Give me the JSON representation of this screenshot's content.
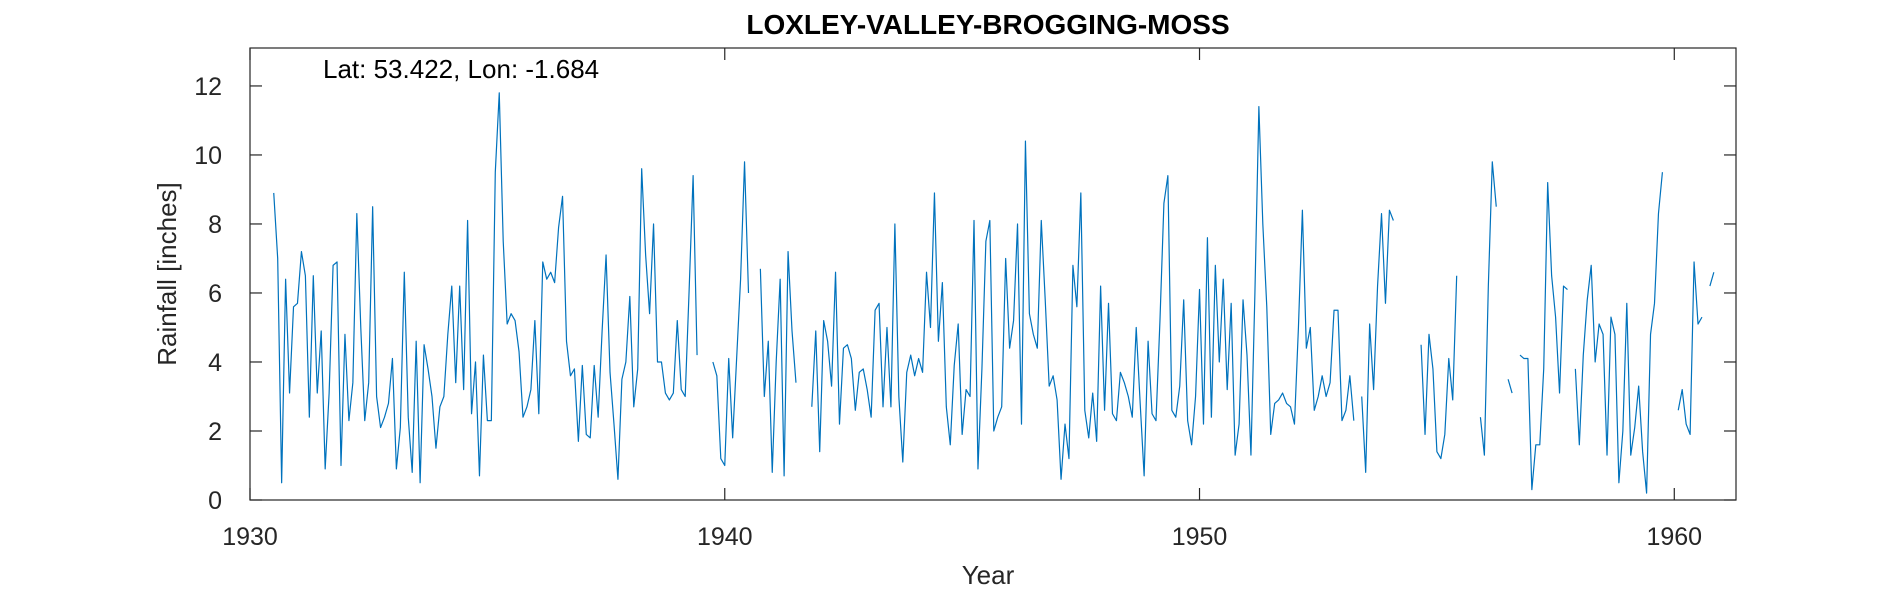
{
  "chart_data": {
    "type": "line",
    "title": "LOXLEY-VALLEY-BROGGING-MOSS",
    "annotation": "Lat: 53.422, Lon: -1.684",
    "xlabel": "Year",
    "ylabel": "Rainfall [inches]",
    "xlim": [
      1930,
      1961.3
    ],
    "ylim": [
      0,
      13.1
    ],
    "xticks": [
      1930,
      1940,
      1950,
      1960
    ],
    "xtick_labels": [
      "1930",
      "1940",
      "1950",
      "1960"
    ],
    "yticks": [
      0,
      2,
      4,
      6,
      8,
      10,
      12
    ],
    "ytick_labels": [
      "0",
      "2",
      "4",
      "6",
      "8",
      "10",
      "12"
    ],
    "grid": false,
    "line_color": "#0072BD",
    "series": [
      {
        "start": 1930.5,
        "step_years": 0.0833333,
        "values": [
          8.9,
          7.0,
          0.5,
          6.4,
          3.1,
          5.6,
          5.7,
          7.2,
          6.5,
          2.4,
          6.5,
          3.1,
          4.9,
          0.9,
          3.1,
          6.8,
          6.9,
          1.0,
          4.8,
          2.3,
          3.4,
          8.3,
          5.0,
          2.3,
          3.4,
          8.5,
          3.0,
          2.1,
          2.4,
          2.8,
          4.1,
          0.9,
          2.1,
          6.6,
          2.4,
          0.8,
          4.6,
          0.5,
          4.5,
          3.8,
          3.0,
          1.5,
          2.7,
          3.0,
          4.8,
          6.2,
          3.4,
          6.2,
          3.2,
          8.1,
          2.5,
          4.0,
          0.7,
          4.2,
          2.3,
          2.3,
          9.5,
          11.8,
          7.5,
          5.1,
          5.4,
          5.2,
          4.3,
          2.4,
          2.7,
          3.2,
          5.2,
          2.5,
          6.9,
          6.4,
          6.6,
          6.3,
          7.9,
          8.8,
          4.6,
          3.6,
          3.8,
          1.7,
          3.9,
          1.9,
          1.8,
          3.9,
          2.4,
          4.9,
          7.1,
          3.7,
          2.2,
          0.6,
          3.5,
          4.0,
          5.9,
          2.7,
          3.8,
          9.6,
          7.1,
          5.4,
          8.0,
          4.0,
          4.0,
          3.1,
          2.9,
          3.1,
          5.2,
          3.2,
          3.0,
          6.1,
          9.4,
          4.2,
          null,
          null,
          null,
          4.0,
          3.6,
          1.2,
          1.0,
          4.1,
          1.8,
          4.1,
          6.4,
          9.8,
          6.0,
          null,
          null,
          6.7,
          3.0,
          4.6,
          0.8,
          4.0,
          6.4,
          0.7,
          7.2,
          4.9,
          3.4,
          null,
          null,
          null,
          2.7,
          4.9,
          1.4,
          5.2,
          4.6,
          3.3,
          6.6,
          2.2,
          4.4,
          4.5,
          4.1,
          2.6,
          3.7,
          3.8,
          3.2,
          2.4,
          5.5,
          5.7,
          2.7,
          5.0,
          2.7,
          8.0,
          3.0,
          1.1,
          3.7,
          4.2,
          3.6,
          4.1,
          3.7,
          6.6,
          5.0,
          8.9,
          4.6,
          6.3,
          2.7,
          1.6,
          3.9,
          5.1,
          1.9,
          3.2,
          3.0,
          8.1,
          0.9,
          3.8,
          7.5,
          8.1,
          2.0,
          2.4,
          2.7,
          7.0,
          4.4,
          5.2,
          8.0,
          2.2,
          10.4,
          5.4,
          4.8,
          4.4,
          8.1,
          5.8,
          3.3,
          3.6,
          2.9,
          0.6,
          2.2,
          1.2,
          6.8,
          5.6,
          8.9,
          2.6,
          1.8,
          3.1,
          1.7,
          6.2,
          2.6,
          5.7,
          2.5,
          2.3,
          3.7,
          3.4,
          3.0,
          2.4,
          5.0,
          2.8,
          0.7,
          4.6,
          2.5,
          2.3,
          5.2,
          8.6,
          9.4,
          2.6,
          2.4,
          3.3,
          5.8,
          2.3,
          1.6,
          3.0,
          6.1,
          2.2,
          7.6,
          2.4,
          6.8,
          4.0,
          6.4,
          3.2,
          5.7,
          1.3,
          2.2,
          5.8,
          4.2,
          1.3,
          6.0,
          11.4,
          8.0,
          5.6,
          1.9,
          2.8,
          2.9,
          3.1,
          2.8,
          2.7,
          2.2,
          5.0,
          8.4,
          4.4,
          5.0,
          2.6,
          3.0,
          3.6,
          3.0,
          3.4,
          5.5,
          5.5,
          2.3,
          2.6,
          3.6,
          2.3,
          null,
          3.0,
          0.8,
          5.1,
          3.2,
          6.2,
          8.3,
          5.7,
          8.4,
          8.1,
          null,
          null,
          null,
          null,
          null,
          null,
          4.5,
          1.9,
          4.8,
          3.8,
          1.4,
          1.2,
          1.9,
          4.1,
          2.9,
          6.5,
          null,
          null,
          null,
          null,
          null,
          2.4,
          1.3,
          6.2,
          9.8,
          8.5,
          null,
          null,
          3.5,
          3.1,
          null,
          4.2,
          4.1,
          4.1,
          0.3,
          1.6,
          1.6,
          3.8,
          9.2,
          6.5,
          5.3,
          3.1,
          6.2,
          6.1,
          null,
          3.8,
          1.6,
          4.2,
          5.8,
          6.8,
          4.0,
          5.1,
          4.8,
          1.3,
          5.3,
          4.8,
          0.5,
          2.0,
          5.7,
          1.3,
          2.1,
          3.3,
          1.4,
          0.2,
          4.8,
          5.7,
          8.3,
          9.5,
          null,
          null,
          null,
          2.6,
          3.2,
          2.2,
          1.9,
          6.9,
          5.1,
          5.3,
          null,
          6.2,
          6.6
        ]
      }
    ]
  }
}
